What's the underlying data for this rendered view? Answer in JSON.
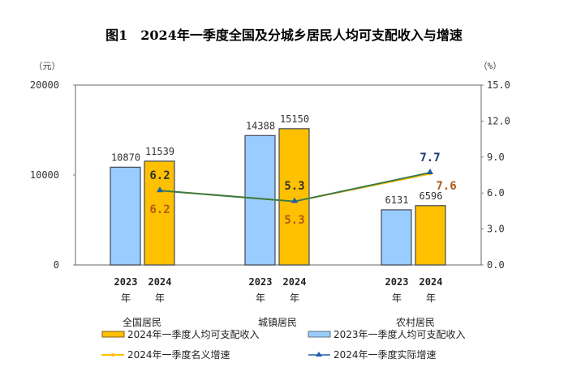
{
  "title": "图1　2024年一季度全国及分城乡居民人均可支配收入与增速",
  "chart_data": {
    "type": "bar",
    "title": "图1　2024年一季度全国及分城乡居民人均可支配收入与增速",
    "categories": [
      "全国居民",
      "城镇居民",
      "农村居民"
    ],
    "year_labels": [
      "2023",
      "2024"
    ],
    "year_suffix": "年",
    "left_unit": "（元）",
    "right_unit": "（%）",
    "ylim": [
      0,
      20000
    ],
    "yticks": [
      "0",
      "10000",
      "20000"
    ],
    "y2lim": [
      0,
      15
    ],
    "y2ticks": [
      "0.0",
      "3.0",
      "6.0",
      "9.0",
      "12.0",
      "15.0"
    ],
    "series": [
      {
        "name": "2023年一季度人均可支配收入",
        "type": "bar",
        "color": "#99ccff",
        "values": [
          10870,
          14388,
          6131
        ]
      },
      {
        "name": "2024年一季度人均可支配收入",
        "type": "bar",
        "color": "#ffc000",
        "values": [
          11539,
          15150,
          6596
        ]
      },
      {
        "name": "2024年一季度名义增速",
        "type": "line",
        "axis": "right",
        "color": "#ffc000",
        "values": [
          6.2,
          5.3,
          7.6
        ],
        "labels": [
          "6.2",
          "5.3",
          "7.6"
        ]
      },
      {
        "name": "2024年一季度实际增速",
        "type": "line",
        "axis": "right",
        "color": "#1f5fa8",
        "values": [
          6.2,
          5.3,
          7.7
        ],
        "labels": [
          "6.2",
          "5.3",
          "7.7"
        ]
      }
    ],
    "legend": "bottom"
  }
}
